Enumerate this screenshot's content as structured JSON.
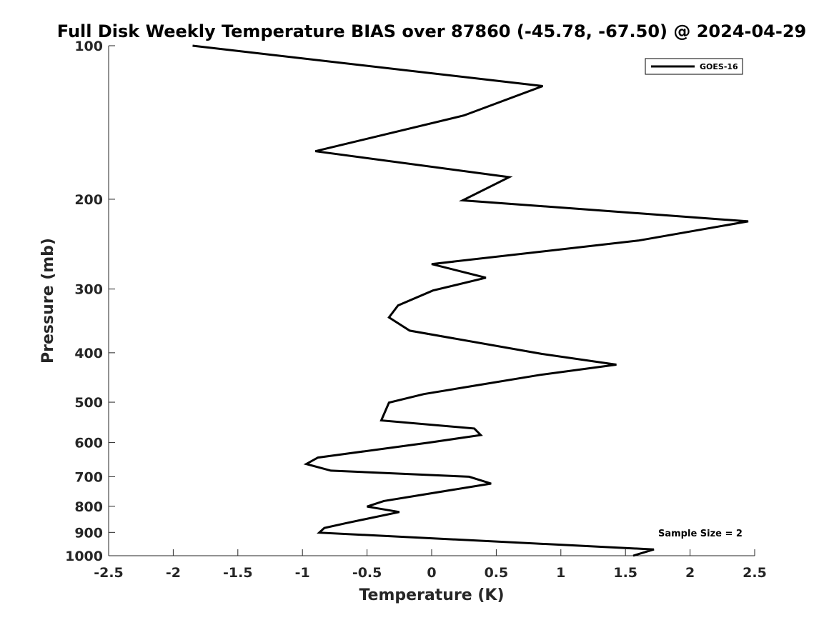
{
  "chart_data": {
    "type": "line",
    "title": "Full Disk Weekly Temperature BIAS over 87860 (-45.78, -67.50) @ 2024-04-29",
    "xlabel": "Temperature (K)",
    "ylabel": "Pressure (mb)",
    "xlim": [
      -2.5,
      2.5
    ],
    "ylim": [
      100,
      1000
    ],
    "y_scale": "log",
    "y_reversed": true,
    "xticks": [
      -2.5,
      -2,
      -1.5,
      -1,
      -0.5,
      0,
      0.5,
      1,
      1.5,
      2,
      2.5
    ],
    "xtick_labels": [
      "-2.5",
      "-2",
      "-1.5",
      "-1",
      "-0.5",
      "0",
      "0.5",
      "1",
      "1.5",
      "2",
      "2.5"
    ],
    "yticks": [
      100,
      200,
      300,
      400,
      500,
      600,
      700,
      800,
      900,
      1000
    ],
    "ytick_labels": [
      "100",
      "200",
      "300",
      "400",
      "500",
      "600",
      "700",
      "800",
      "900",
      "1000"
    ],
    "grid": false,
    "legend_position": "top-right",
    "series": [
      {
        "name": "GOES-16",
        "color": "#000000",
        "points": [
          {
            "x": -1.85,
            "y": 100
          },
          {
            "x": 0.86,
            "y": 120
          },
          {
            "x": 0.25,
            "y": 137
          },
          {
            "x": -0.9,
            "y": 161
          },
          {
            "x": 0.6,
            "y": 181
          },
          {
            "x": 0.24,
            "y": 201
          },
          {
            "x": 2.45,
            "y": 221
          },
          {
            "x": 1.6,
            "y": 241
          },
          {
            "x": 0.0,
            "y": 268
          },
          {
            "x": 0.42,
            "y": 285
          },
          {
            "x": 0.01,
            "y": 302
          },
          {
            "x": -0.26,
            "y": 323
          },
          {
            "x": -0.33,
            "y": 341
          },
          {
            "x": -0.17,
            "y": 362
          },
          {
            "x": 0.85,
            "y": 402
          },
          {
            "x": 1.43,
            "y": 422
          },
          {
            "x": 0.84,
            "y": 442
          },
          {
            "x": 0.31,
            "y": 465
          },
          {
            "x": -0.06,
            "y": 482
          },
          {
            "x": -0.33,
            "y": 501
          },
          {
            "x": -0.39,
            "y": 543
          },
          {
            "x": 0.33,
            "y": 563
          },
          {
            "x": 0.38,
            "y": 580
          },
          {
            "x": -0.02,
            "y": 600
          },
          {
            "x": -0.88,
            "y": 642
          },
          {
            "x": -0.97,
            "y": 661
          },
          {
            "x": -0.78,
            "y": 681
          },
          {
            "x": 0.29,
            "y": 700
          },
          {
            "x": 0.46,
            "y": 722
          },
          {
            "x": -0.37,
            "y": 781
          },
          {
            "x": -0.5,
            "y": 801
          },
          {
            "x": -0.25,
            "y": 821
          },
          {
            "x": -0.66,
            "y": 863
          },
          {
            "x": -0.83,
            "y": 882
          },
          {
            "x": -0.87,
            "y": 901
          },
          {
            "x": 1.72,
            "y": 972
          },
          {
            "x": 1.56,
            "y": 1000
          }
        ]
      }
    ],
    "annotations": [
      {
        "text": "Sample Size = 2"
      }
    ]
  }
}
